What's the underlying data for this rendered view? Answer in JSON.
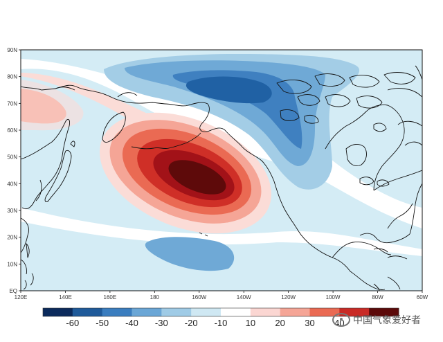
{
  "map": {
    "lat_labels": [
      "90N",
      "80N",
      "70N",
      "60N",
      "50N",
      "40N",
      "30N",
      "20N",
      "10N",
      "EQ"
    ],
    "lon_labels": [
      "120E",
      "140E",
      "160E",
      "180",
      "160W",
      "140W",
      "120W",
      "100W",
      "80W",
      "60W"
    ],
    "extent": {
      "lon_min_e": 120,
      "lon_max_e": 300,
      "lat_min": 0,
      "lat_max": 90
    },
    "colorbar": {
      "labels": [
        "-60",
        "-50",
        "-40",
        "-30",
        "-20",
        "-10",
        "10",
        "20",
        "30",
        "40"
      ],
      "colors": [
        "#0b2a5c",
        "#1f5a9a",
        "#3a7dbf",
        "#6aa6d6",
        "#9fcbe6",
        "#cfe8f3",
        "#ffffff",
        "#fbd6d2",
        "#f5a596",
        "#ea6a53",
        "#c92b26",
        "#5c0a0a"
      ]
    },
    "palette": {
      "neg10": "#d4ecf5",
      "neg20": "#a3cde6",
      "neg30": "#6fa9d6",
      "neg40": "#3f80c0",
      "neg50": "#2061a4",
      "pos10": "#fbdcd7",
      "pos20": "#f5a596",
      "pos30": "#ea6a53",
      "pos40": "#cf2f27",
      "pos50": "#a21218",
      "pos60": "#5e0a0a"
    }
  },
  "watermark": {
    "text": "中国气象爱好者"
  }
}
